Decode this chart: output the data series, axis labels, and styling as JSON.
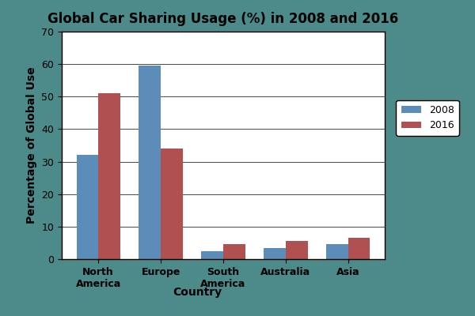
{
  "title": "Global Car Sharing Usage (%) in 2008 and 2016",
  "categories": [
    "North\nAmerica",
    "Europe",
    "South\nAmerica",
    "Australia",
    "Asia"
  ],
  "xlabel": "Country",
  "ylabel": "Percentage of Global Use",
  "values_2008": [
    32,
    59.5,
    2.5,
    3.5,
    4.5
  ],
  "values_2016": [
    51,
    34,
    4.5,
    5.5,
    6.5
  ],
  "color_2008": "#5B8DB8",
  "color_2016": "#B05050",
  "ylim": [
    0,
    70
  ],
  "yticks": [
    0,
    10,
    20,
    30,
    40,
    50,
    60,
    70
  ],
  "legend_labels": [
    "2008",
    "2016"
  ],
  "bar_width": 0.35,
  "figsize": [
    6.0,
    4.0
  ],
  "dpi": 100,
  "figure_bg": "#4D8A8A",
  "axes_bg": "#FFFFFF"
}
